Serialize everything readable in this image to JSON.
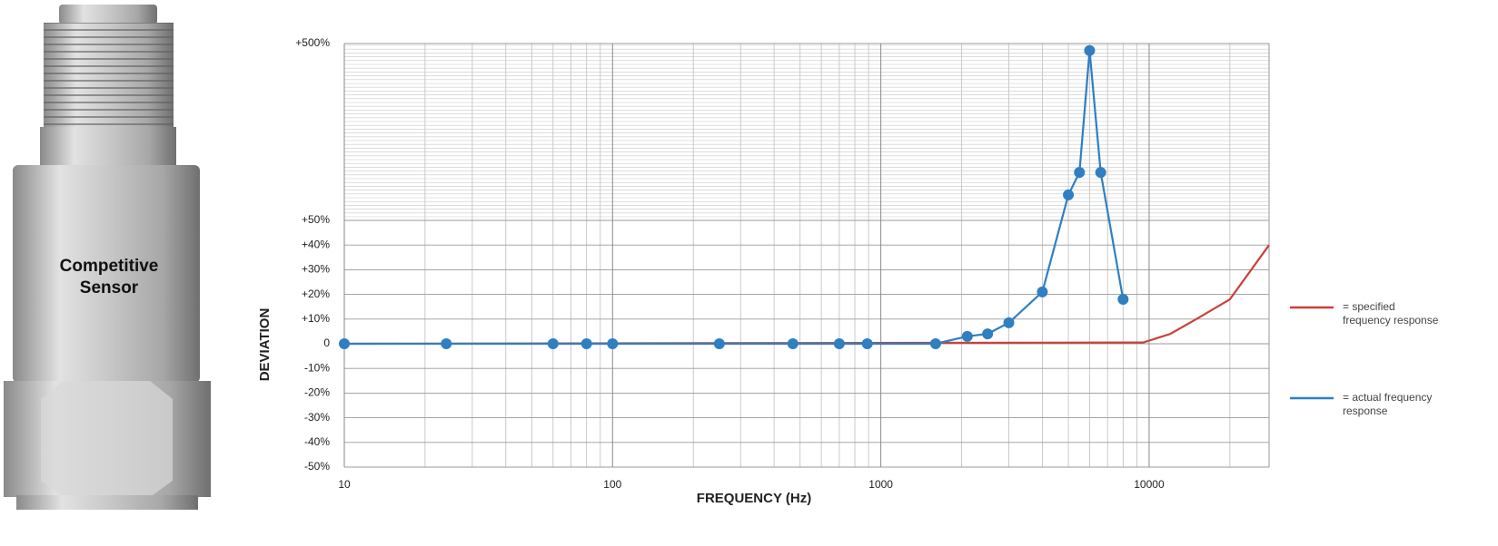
{
  "chart_data": {
    "type": "line",
    "annotation": "Competitive Sensor",
    "xlabel": "FREQUENCY (Hz)",
    "ylabel": "DEVIATION",
    "xscale": "log",
    "yscale": "broken",
    "xlim": [
      10,
      28000
    ],
    "xticks": [
      10,
      100,
      1000,
      10000
    ],
    "ylim": [
      -50,
      500
    ],
    "yticks": [
      {
        "value": -50,
        "label": "-50%"
      },
      {
        "value": -40,
        "label": "-40%"
      },
      {
        "value": -30,
        "label": "-30%"
      },
      {
        "value": -20,
        "label": "-20%"
      },
      {
        "value": -10,
        "label": "-10%"
      },
      0,
      {
        "value": 10,
        "label": "+10%"
      },
      {
        "value": 20,
        "label": "+20%"
      },
      {
        "value": 30,
        "label": "+30%"
      },
      {
        "value": 40,
        "label": "+40%"
      },
      {
        "value": 50,
        "label": "+50%"
      },
      {
        "value": 500,
        "label": "+500%"
      }
    ],
    "grid": true,
    "minor_grid": true,
    "legend": "right",
    "series": [
      {
        "name": "= specified frequency response",
        "color": "#c8413b",
        "marker": false,
        "x": [
          10,
          9500,
          12000,
          15000,
          20000,
          28000
        ],
        "values": [
          0,
          0.5,
          4,
          10,
          18,
          40
        ]
      },
      {
        "name": "= actual frequency response",
        "color": "#2f7fc1",
        "marker": true,
        "x": [
          10,
          24,
          60,
          80,
          100,
          250,
          470,
          700,
          890,
          1600,
          2100,
          2500,
          3000,
          4000,
          5000,
          5500,
          6000,
          6600,
          8000
        ],
        "values": [
          0,
          0,
          0,
          0,
          0,
          0,
          0,
          0,
          0,
          0,
          3,
          4,
          8.5,
          21,
          115,
          172,
          482,
          172,
          18
        ]
      }
    ]
  }
}
